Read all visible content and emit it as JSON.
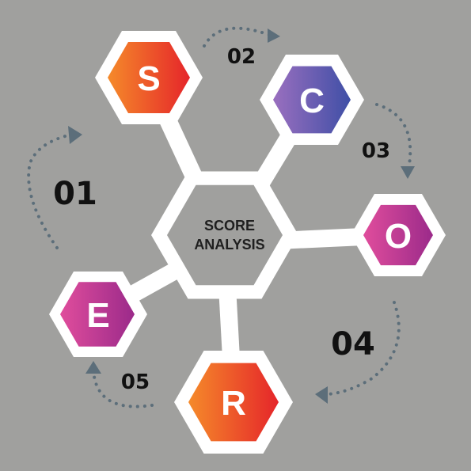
{
  "colors": {
    "background": "#a0a09e",
    "connector": "#ffffff",
    "center_fill": "#a0a09e",
    "arrow": "#5c6e7a",
    "text_dark": "#111111"
  },
  "center": {
    "line1": "SCORE",
    "line2": "ANALYSIS"
  },
  "nodes": [
    {
      "letter": "S",
      "gradient": [
        "#f58a2a",
        "#e5252a"
      ]
    },
    {
      "letter": "C",
      "gradient": [
        "#9a6fbf",
        "#3f4fa6"
      ]
    },
    {
      "letter": "O",
      "gradient": [
        "#e04d9c",
        "#9b2a8a"
      ]
    },
    {
      "letter": "R",
      "gradient": [
        "#f58a2a",
        "#e5252a"
      ]
    },
    {
      "letter": "E",
      "gradient": [
        "#e04d9c",
        "#9b2a8a"
      ]
    }
  ],
  "steps": [
    "01",
    "02",
    "03",
    "04",
    "05"
  ]
}
